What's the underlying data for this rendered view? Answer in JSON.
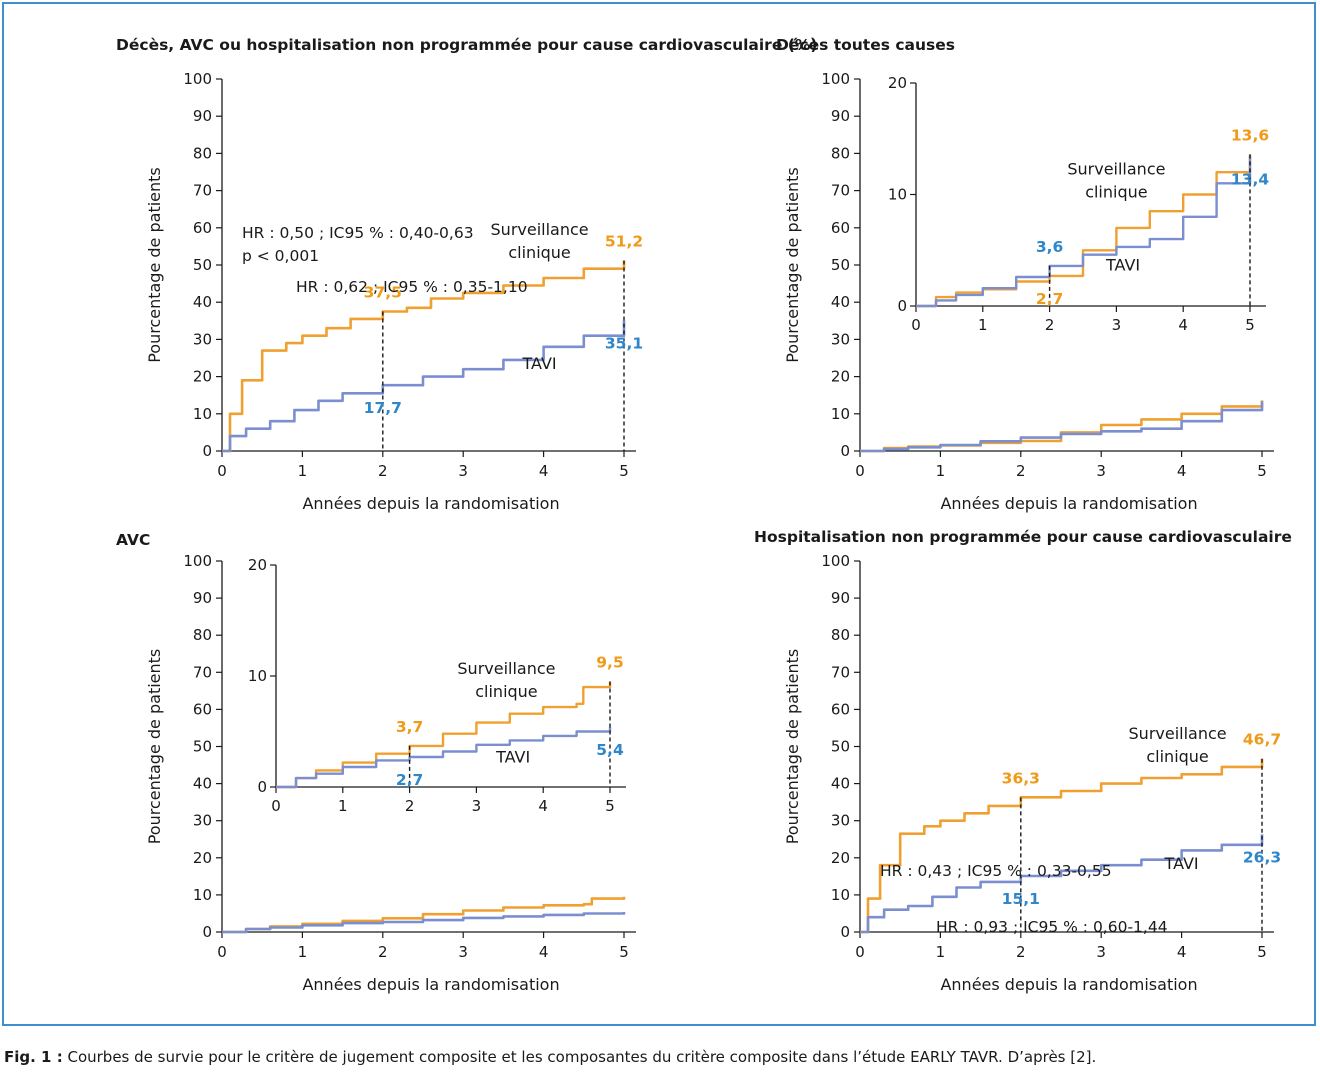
{
  "caption": {
    "label": "Fig. 1 :",
    "text": " Courbes de survie pour le critère de jugement composite et les composantes du critère composite dans l’étude EARLY TAVR. D’après [2]."
  },
  "colors": {
    "surveillance": "#f0a030",
    "tavi": "#7b8fd0",
    "surveillance_label": "#f09a1a",
    "tavi_label": "#2f86c8",
    "frame": "#3f8fd0"
  },
  "chart_data": [
    {
      "id": "composite",
      "type": "line",
      "title": "Décès, AVC ou hospitalisation non programmée pour cause cardiovasculaire (%)",
      "xlabel": "Années depuis la randomisation",
      "ylabel": "Pourcentage de patients",
      "xlim": [
        0,
        5
      ],
      "ylim": [
        0,
        100
      ],
      "xticks": [
        "0",
        "1",
        "2",
        "3",
        "4",
        "5"
      ],
      "yticks": [
        "0",
        "10",
        "20",
        "30",
        "40",
        "50",
        "60",
        "70",
        "80",
        "90",
        "100"
      ],
      "stats": [
        "HR : 0,50 ; IC95 % : 0,40-0,63",
        "p < 0,001"
      ],
      "group_labels": {
        "surveillance": [
          "Surveillance",
          "clinique"
        ],
        "tavi": [
          "TAVI"
        ]
      },
      "series": [
        {
          "name": "Surveillance clinique",
          "key": "surveillance",
          "x": [
            0,
            0.1,
            0.25,
            0.5,
            0.8,
            1.0,
            1.3,
            1.6,
            2.0,
            2.3,
            2.6,
            3.0,
            3.5,
            4.0,
            4.5,
            5.0
          ],
          "y": [
            0,
            10,
            19,
            27,
            29,
            31,
            33,
            35.5,
            37.5,
            38.5,
            41,
            42.5,
            44.5,
            46.5,
            49,
            51.2
          ]
        },
        {
          "name": "TAVI",
          "key": "tavi",
          "x": [
            0,
            0.1,
            0.3,
            0.6,
            0.9,
            1.2,
            1.5,
            2.0,
            2.5,
            3.0,
            3.5,
            4.0,
            4.5,
            5.0
          ],
          "y": [
            0,
            4,
            6,
            8,
            11,
            13.5,
            15.5,
            17.7,
            20,
            22,
            24.5,
            28,
            31,
            35.1
          ]
        }
      ],
      "annotations": [
        {
          "x": 2,
          "y": 37.5,
          "text": "37,5",
          "series": "surveillance"
        },
        {
          "x": 2,
          "y": 17.7,
          "text": "17,7",
          "series": "tavi"
        },
        {
          "x": 5,
          "y": 51.2,
          "text": "51,2",
          "series": "surveillance"
        },
        {
          "x": 5,
          "y": 35.1,
          "text": "35,1",
          "series": "tavi"
        }
      ]
    },
    {
      "id": "deces",
      "type": "line",
      "title": "Décès toutes causes",
      "xlabel": "Années depuis la randomisation",
      "ylabel": "Pourcentage de patients",
      "xlim": [
        0,
        5
      ],
      "ylim": [
        0,
        100
      ],
      "xticks": [
        "0",
        "1",
        "2",
        "3",
        "4",
        "5"
      ],
      "yticks": [
        "0",
        "10",
        "20",
        "30",
        "40",
        "50",
        "60",
        "70",
        "80",
        "90",
        "100"
      ],
      "series": [
        {
          "name": "Surveillance clinique",
          "key": "surveillance",
          "x": [
            0,
            0.3,
            0.6,
            1.0,
            1.5,
            2.0,
            2.5,
            3.0,
            3.5,
            4.0,
            4.5,
            5.0
          ],
          "y": [
            0,
            0.8,
            1.2,
            1.5,
            2.2,
            2.7,
            5,
            7,
            8.5,
            10,
            12,
            13.6
          ]
        },
        {
          "name": "TAVI",
          "key": "tavi",
          "x": [
            0,
            0.3,
            0.6,
            1.0,
            1.5,
            2.0,
            2.5,
            3.0,
            3.5,
            4.0,
            4.5,
            5.0
          ],
          "y": [
            0,
            0.5,
            1.0,
            1.6,
            2.6,
            3.6,
            4.6,
            5.3,
            6,
            8,
            11,
            13.4
          ]
        }
      ],
      "inset": {
        "xlim": [
          0,
          5
        ],
        "ylim": [
          0,
          20
        ],
        "xticks": [
          "0",
          "1",
          "2",
          "3",
          "4",
          "5"
        ],
        "yticks": [
          "0",
          "10",
          "20"
        ],
        "stats": [
          "HR : 0,93 ; IC95 % : 0,60-1,44"
        ],
        "group_labels": {
          "surveillance": [
            "Surveillance",
            "clinique"
          ],
          "tavi": [
            "TAVI"
          ]
        },
        "annotations": [
          {
            "x": 2,
            "y": 2.7,
            "text": "2,7",
            "series": "surveillance"
          },
          {
            "x": 2,
            "y": 3.6,
            "text": "3,6",
            "series": "tavi"
          },
          {
            "x": 5,
            "y": 13.6,
            "text": "13,6",
            "series": "surveillance"
          },
          {
            "x": 5,
            "y": 13.4,
            "text": "13,4",
            "series": "tavi"
          }
        ]
      }
    },
    {
      "id": "avc",
      "type": "line",
      "title": "AVC",
      "xlabel": "Années depuis la randomisation",
      "ylabel": "Pourcentage de patients",
      "xlim": [
        0,
        5
      ],
      "ylim": [
        0,
        100
      ],
      "xticks": [
        "0",
        "1",
        "2",
        "3",
        "4",
        "5"
      ],
      "yticks": [
        "0",
        "10",
        "20",
        "30",
        "40",
        "50",
        "60",
        "70",
        "80",
        "90",
        "100"
      ],
      "series": [
        {
          "name": "Surveillance clinique",
          "key": "surveillance",
          "x": [
            0,
            0.3,
            0.6,
            1.0,
            1.5,
            2.0,
            2.5,
            3.0,
            3.5,
            4.0,
            4.5,
            4.6,
            5.0
          ],
          "y": [
            0,
            0.8,
            1.5,
            2.2,
            3.0,
            3.7,
            4.8,
            5.8,
            6.6,
            7.2,
            7.5,
            9.0,
            9.5
          ]
        },
        {
          "name": "TAVI",
          "key": "tavi",
          "x": [
            0,
            0.3,
            0.6,
            1.0,
            1.5,
            2.0,
            2.5,
            3.0,
            3.5,
            4.0,
            4.5,
            5.0
          ],
          "y": [
            0,
            0.8,
            1.2,
            1.8,
            2.4,
            2.7,
            3.2,
            3.8,
            4.2,
            4.6,
            5.0,
            5.4
          ]
        }
      ],
      "inset": {
        "xlim": [
          0,
          5
        ],
        "ylim": [
          0,
          20
        ],
        "xticks": [
          "0",
          "1",
          "2",
          "3",
          "4",
          "5"
        ],
        "yticks": [
          "0",
          "10",
          "20"
        ],
        "stats": [
          "HR : 0,62 ; IC95 % : 0,35-1,10"
        ],
        "group_labels": {
          "surveillance": [
            "Surveillance",
            "clinique"
          ],
          "tavi": [
            "TAVI"
          ]
        },
        "annotations": [
          {
            "x": 2,
            "y": 3.7,
            "text": "3,7",
            "series": "surveillance"
          },
          {
            "x": 2,
            "y": 2.7,
            "text": "2,7",
            "series": "tavi"
          },
          {
            "x": 5,
            "y": 9.5,
            "text": "9,5",
            "series": "surveillance"
          },
          {
            "x": 5,
            "y": 5.4,
            "text": "5,4",
            "series": "tavi"
          }
        ]
      }
    },
    {
      "id": "hospitalisation",
      "type": "line",
      "title": "Hospitalisation non programmée pour cause cardiovasculaire",
      "xlabel": "Années depuis la randomisation",
      "ylabel": "Pourcentage de patients",
      "xlim": [
        0,
        5
      ],
      "ylim": [
        0,
        100
      ],
      "xticks": [
        "0",
        "1",
        "2",
        "3",
        "4",
        "5"
      ],
      "yticks": [
        "0",
        "10",
        "20",
        "30",
        "40",
        "50",
        "60",
        "70",
        "80",
        "90",
        "100"
      ],
      "stats": [
        "HR : 0,43 ; IC95 % : 0,33-0,55"
      ],
      "group_labels": {
        "surveillance": [
          "Surveillance",
          "clinique"
        ],
        "tavi": [
          "TAVI"
        ]
      },
      "series": [
        {
          "name": "Surveillance clinique",
          "key": "surveillance",
          "x": [
            0,
            0.1,
            0.25,
            0.5,
            0.8,
            1.0,
            1.3,
            1.6,
            2.0,
            2.5,
            3.0,
            3.5,
            4.0,
            4.5,
            5.0
          ],
          "y": [
            0,
            9,
            18,
            26.5,
            28.5,
            30,
            32,
            34,
            36.3,
            38,
            40,
            41.5,
            42.5,
            44.5,
            46.7
          ]
        },
        {
          "name": "TAVI",
          "key": "tavi",
          "x": [
            0,
            0.1,
            0.3,
            0.6,
            0.9,
            1.2,
            1.5,
            2.0,
            2.5,
            3.0,
            3.5,
            4.0,
            4.5,
            5.0
          ],
          "y": [
            0,
            4,
            6,
            7,
            9.5,
            12,
            13.5,
            15.1,
            16.5,
            18,
            19.5,
            22,
            23.5,
            26.3
          ]
        }
      ],
      "annotations": [
        {
          "x": 2,
          "y": 36.3,
          "text": "36,3",
          "series": "surveillance"
        },
        {
          "x": 2,
          "y": 15.1,
          "text": "15,1",
          "series": "tavi"
        },
        {
          "x": 5,
          "y": 46.7,
          "text": "46,7",
          "series": "surveillance"
        },
        {
          "x": 5,
          "y": 26.3,
          "text": "26,3",
          "series": "tavi"
        }
      ]
    }
  ]
}
